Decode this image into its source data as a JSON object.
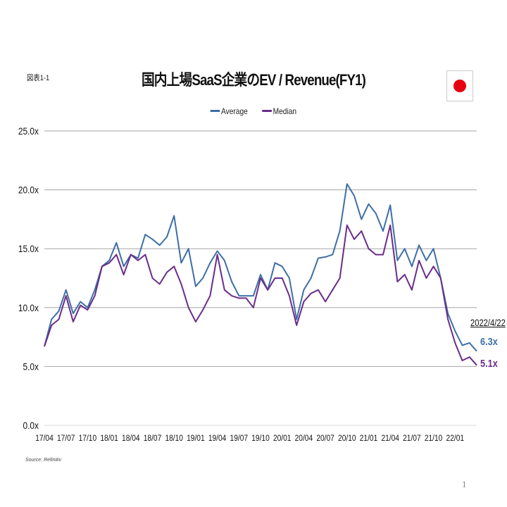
{
  "header": {
    "figure_label": "図表1-1",
    "flag_icon": "japan-flag-icon"
  },
  "footer": {
    "source": "Source: Refinitiv",
    "page_number": "1"
  },
  "chart_data": {
    "type": "line",
    "title": "国内上場SaaS企業のEV / Revenue(FY1)",
    "xlabel": "",
    "ylabel": "",
    "ylim": [
      0,
      25
    ],
    "yticks": [
      "0.0x",
      "5.0x",
      "10.0x",
      "15.0x",
      "20.0x",
      "25.0x"
    ],
    "xticks": [
      "17/04",
      "17/07",
      "17/10",
      "18/01",
      "18/04",
      "18/07",
      "18/10",
      "19/01",
      "19/04",
      "19/07",
      "19/10",
      "20/01",
      "20/04",
      "20/07",
      "20/10",
      "21/01",
      "21/04",
      "21/07",
      "21/10",
      "22/01"
    ],
    "grid": true,
    "legend_position": "top",
    "x": [
      "2017-04",
      "2017-05",
      "2017-06",
      "2017-07",
      "2017-08",
      "2017-09",
      "2017-10",
      "2017-11",
      "2017-12",
      "2018-01",
      "2018-02",
      "2018-03",
      "2018-04",
      "2018-05",
      "2018-06",
      "2018-07",
      "2018-08",
      "2018-09",
      "2018-10",
      "2018-11",
      "2018-12",
      "2019-01",
      "2019-02",
      "2019-03",
      "2019-04",
      "2019-05",
      "2019-06",
      "2019-07",
      "2019-08",
      "2019-09",
      "2019-10",
      "2019-11",
      "2019-12",
      "2020-01",
      "2020-02",
      "2020-03",
      "2020-04",
      "2020-05",
      "2020-06",
      "2020-07",
      "2020-08",
      "2020-09",
      "2020-10",
      "2020-11",
      "2020-12",
      "2021-01",
      "2021-02",
      "2021-03",
      "2021-04",
      "2021-05",
      "2021-06",
      "2021-07",
      "2021-08",
      "2021-09",
      "2021-10",
      "2021-11",
      "2021-12",
      "2022-01",
      "2022-02",
      "2022-03",
      "2022-04"
    ],
    "series": [
      {
        "name": "Average",
        "color": "#3e6fa6",
        "values": [
          6.7,
          9.0,
          9.7,
          11.5,
          9.5,
          10.5,
          10.0,
          11.5,
          13.5,
          14.0,
          15.5,
          13.5,
          14.5,
          14.2,
          16.2,
          15.8,
          15.3,
          16.0,
          17.8,
          13.8,
          15.0,
          11.8,
          12.5,
          13.8,
          14.8,
          14.0,
          12.2,
          11.0,
          11.0,
          11.0,
          12.8,
          11.5,
          13.8,
          13.5,
          12.5,
          9.0,
          11.5,
          12.5,
          14.2,
          14.3,
          14.5,
          16.5,
          20.5,
          19.5,
          17.5,
          18.8,
          18.0,
          16.5,
          18.7,
          14.0,
          15.0,
          13.5,
          15.3,
          14.0,
          15.0,
          12.5,
          9.5,
          8.0,
          6.8,
          7.0,
          6.3
        ]
      },
      {
        "name": "Median",
        "color": "#6a2c8a",
        "values": [
          6.7,
          8.5,
          9.0,
          11.0,
          8.8,
          10.2,
          9.8,
          11.0,
          13.5,
          13.8,
          14.5,
          12.8,
          14.5,
          14.0,
          14.5,
          12.5,
          12.0,
          13.0,
          13.5,
          12.0,
          10.0,
          8.8,
          9.8,
          11.0,
          14.5,
          11.5,
          11.0,
          10.8,
          10.8,
          10.0,
          12.5,
          11.5,
          12.5,
          12.5,
          11.0,
          8.5,
          10.5,
          11.2,
          11.5,
          10.5,
          11.5,
          12.5,
          17.0,
          15.8,
          16.5,
          15.0,
          14.5,
          14.5,
          17.0,
          12.2,
          12.8,
          11.5,
          14.0,
          12.5,
          13.5,
          12.5,
          9.0,
          7.0,
          5.5,
          5.8,
          5.1
        ]
      }
    ],
    "annotations": {
      "date": "2022/4/22",
      "average_latest": "6.3x",
      "median_latest": "5.1x"
    }
  }
}
